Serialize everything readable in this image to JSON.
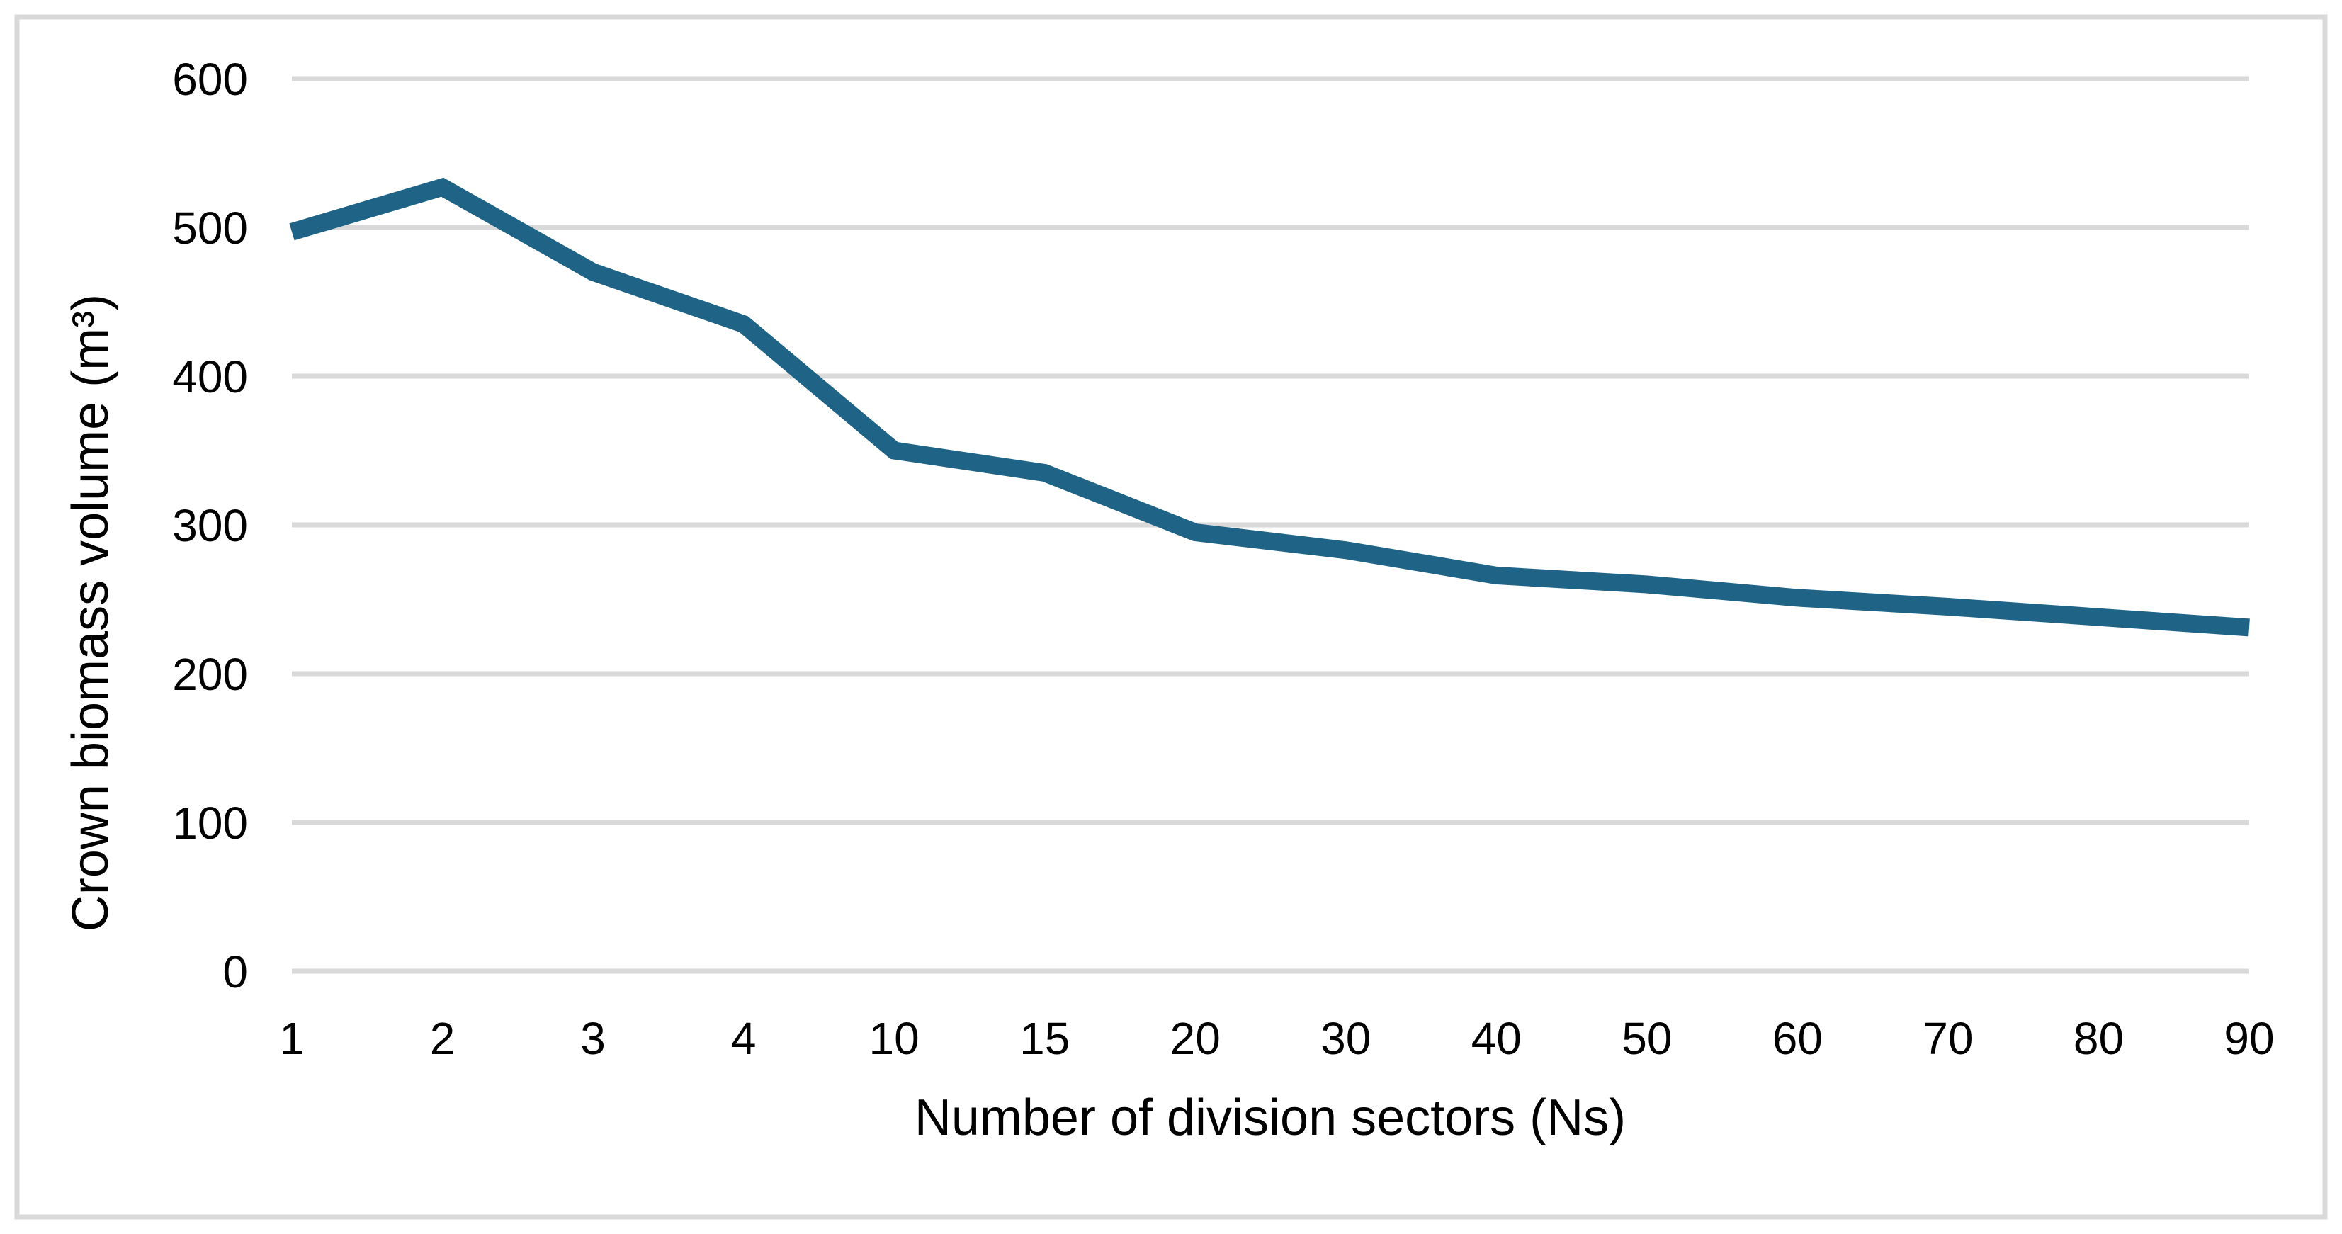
{
  "chart_data": {
    "type": "line",
    "title": "",
    "categories": [
      "1",
      "2",
      "3",
      "4",
      "10",
      "15",
      "20",
      "30",
      "40",
      "50",
      "60",
      "70",
      "80",
      "90"
    ],
    "series": [
      {
        "name": "Crown biomass volume",
        "values": [
          497,
          527,
          470,
          435,
          350,
          335,
          295,
          283,
          266,
          260,
          251,
          245,
          238,
          231
        ]
      }
    ],
    "xlabel": "Number of division sectors (Ns)",
    "ylabel": "Crown biomass volume (m³)",
    "ylim": [
      0,
      600
    ],
    "ytick_step": 100,
    "yticks": [
      "0",
      "100",
      "200",
      "300",
      "400",
      "500",
      "600"
    ],
    "grid": "horizontal-only",
    "legend_position": "none",
    "colors": {
      "line": "#1f6487",
      "gridline": "#d9d9d9",
      "frame_border": "#d9d9d9",
      "text": "#000000",
      "background": "#ffffff"
    }
  }
}
